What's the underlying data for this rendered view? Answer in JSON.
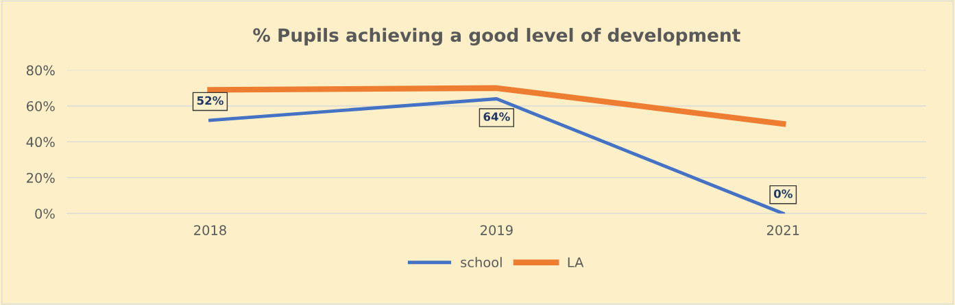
{
  "chart_data": {
    "type": "line",
    "title": "% Pupils achieving a good level of development",
    "categories": [
      "2018",
      "2019",
      "2021"
    ],
    "series": [
      {
        "name": "school",
        "color": "#4472c4",
        "values": [
          52,
          64,
          0
        ],
        "value_labels": [
          "52%",
          "64%",
          "0%"
        ]
      },
      {
        "name": "LA",
        "color": "#ed7d31",
        "values": [
          69,
          70,
          50
        ]
      }
    ],
    "ylim": [
      0,
      80
    ],
    "yticks": [
      {
        "value": 0,
        "label": "0%"
      },
      {
        "value": 20,
        "label": "20%"
      },
      {
        "value": 40,
        "label": "40%"
      },
      {
        "value": 60,
        "label": "60%"
      },
      {
        "value": 80,
        "label": "80%"
      }
    ],
    "grid": "y",
    "legend": "bottom"
  }
}
